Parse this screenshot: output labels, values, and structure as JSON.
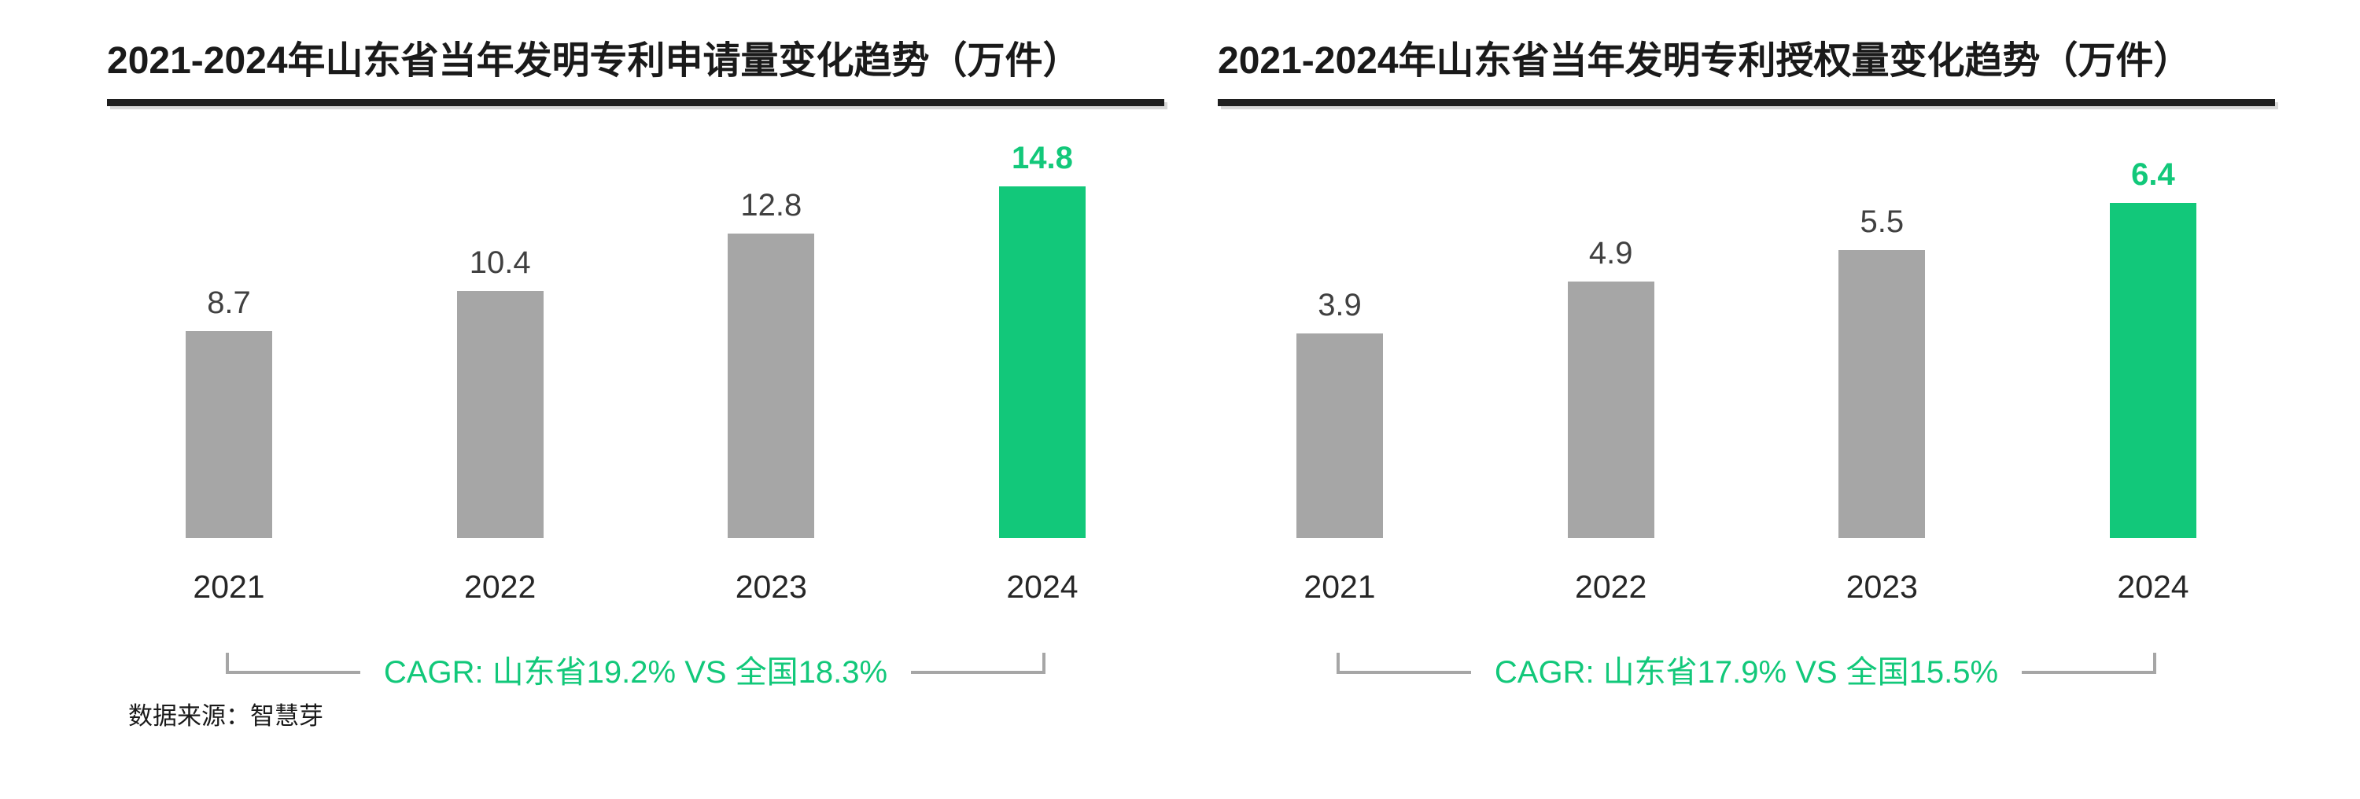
{
  "source_note": "数据来源：智慧芽",
  "colors": {
    "accent_green": "#12C87A",
    "bar_gray": "#A6A6A6",
    "value_label": "#404040",
    "axis_label": "#262626",
    "title_text": "#1A1A1A",
    "title_underline": "#1F1F1F",
    "bracket_line": "#A6A6A6"
  },
  "chart_data": [
    {
      "type": "bar",
      "title": "2021-2024年山东省当年发明专利申请量变化趋势（万件）",
      "unit": "万件",
      "categories": [
        "2021",
        "2022",
        "2023",
        "2024"
      ],
      "values": [
        8.7,
        10.4,
        12.8,
        14.8
      ],
      "value_labels": [
        "8.7",
        "10.4",
        "12.8",
        "14.8"
      ],
      "highlight_index": 3,
      "cagr_label": "CAGR: 山东省19.2% VS 全国18.3%",
      "ylim": [
        0,
        14.8
      ],
      "grid": false,
      "legend": "none"
    },
    {
      "type": "bar",
      "title": "2021-2024年山东省当年发明专利授权量变化趋势（万件）",
      "unit": "万件",
      "categories": [
        "2021",
        "2022",
        "2023",
        "2024"
      ],
      "values": [
        3.9,
        4.9,
        5.5,
        6.4
      ],
      "value_labels": [
        "3.9",
        "4.9",
        "5.5",
        "6.4"
      ],
      "highlight_index": 3,
      "cagr_label": "CAGR: 山东省17.9% VS 全国15.5%",
      "ylim": [
        0,
        6.4
      ],
      "grid": false,
      "legend": "none"
    }
  ]
}
